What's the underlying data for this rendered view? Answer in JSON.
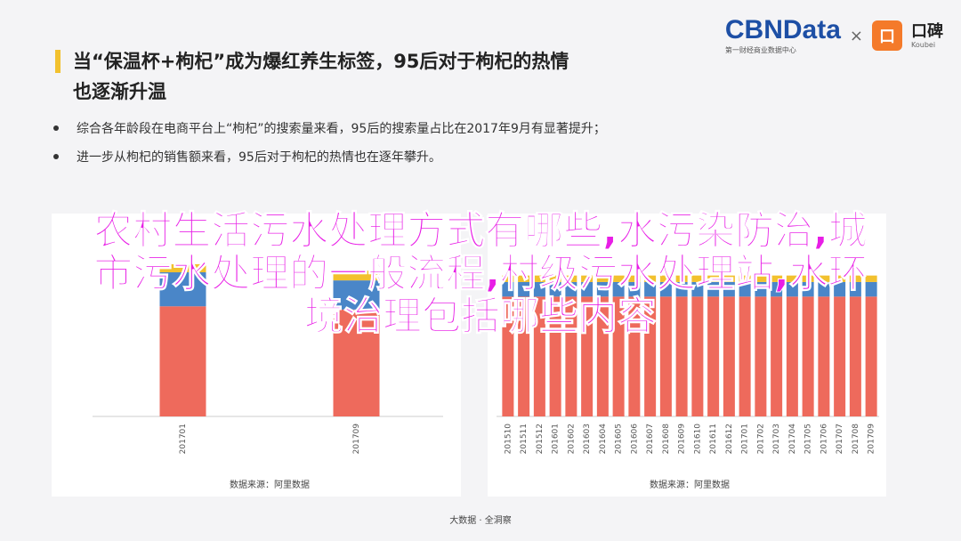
{
  "header": {
    "title_line1": "当“保温杯+枸杞”成为爆红养生标签，95后对于枸杞的热情",
    "title_line2": "也逐渐升温"
  },
  "brand": {
    "cbn": "CBNData",
    "cbn_sub": "第一财经商业数据中心",
    "times": "×",
    "koubei_logo": "口",
    "koubei": "口碑",
    "koubei_sub": "Koubei"
  },
  "bullets": [
    "综合各年龄段在电商平台上“枸杞”的搜索量来看，95后的搜索量占比在2017年9月有显著提升；",
    "进一步从枸杞的销售额来看，95后对于枸杞的热情也在逐年攀升。"
  ],
  "overlay": {
    "line1": "农村生活污水处理方式有哪些,水污染防治,城",
    "line2": "市污水处理的一般流程,村级污水处理站,水环",
    "line3": "境治理包括哪些内容"
  },
  "footer": "大数据 · 全洞察",
  "colors": {
    "red": "#ee6a5c",
    "blue": "#4a86c8",
    "yellow": "#f2c12e",
    "accent": "#f2c12e",
    "overlay": "#e81ee6"
  },
  "chart_data": [
    {
      "type": "bar",
      "stacked": true,
      "categories": [
        "201701",
        "201709"
      ],
      "series": [
        {
          "color": "#ee6a5c",
          "values": [
            0.68,
            0.66
          ]
        },
        {
          "color": "#4a86c8",
          "values": [
            0.21,
            0.18
          ]
        },
        {
          "color": "#f2c12e",
          "values": [
            0.05,
            0.06
          ]
        }
      ],
      "ylim": [
        0,
        1
      ],
      "source": "数据来源：阿里数据"
    },
    {
      "type": "bar",
      "stacked": true,
      "categories": [
        "201510",
        "201511",
        "201512",
        "201601",
        "201602",
        "201603",
        "201604",
        "201605",
        "201606",
        "201607",
        "201608",
        "201609",
        "201610",
        "201611",
        "201612",
        "201701",
        "201702",
        "201703",
        "201704",
        "201705",
        "201706",
        "201707",
        "201708",
        "201709"
      ],
      "series": [
        {
          "color": "#ee6a5c",
          "values": [
            0.74,
            0.74,
            0.74,
            0.74,
            0.74,
            0.74,
            0.74,
            0.74,
            0.74,
            0.74,
            0.74,
            0.74,
            0.74,
            0.74,
            0.74,
            0.74,
            0.74,
            0.74,
            0.74,
            0.74,
            0.74,
            0.74,
            0.74,
            0.74
          ]
        },
        {
          "color": "#4a86c8",
          "values": [
            0.09,
            0.09,
            0.09,
            0.09,
            0.09,
            0.09,
            0.09,
            0.09,
            0.09,
            0.09,
            0.09,
            0.09,
            0.09,
            0.09,
            0.09,
            0.09,
            0.09,
            0.09,
            0.09,
            0.09,
            0.09,
            0.09,
            0.09,
            0.09
          ]
        },
        {
          "color": "#f2c12e",
          "values": [
            0.04,
            0.04,
            0.04,
            0.04,
            0.04,
            0.04,
            0.04,
            0.04,
            0.04,
            0.04,
            0.04,
            0.04,
            0.04,
            0.04,
            0.04,
            0.04,
            0.04,
            0.04,
            0.04,
            0.04,
            0.04,
            0.04,
            0.04,
            0.04
          ]
        }
      ],
      "ylim": [
        0,
        1
      ],
      "source": "数据来源：阿里数据"
    }
  ]
}
